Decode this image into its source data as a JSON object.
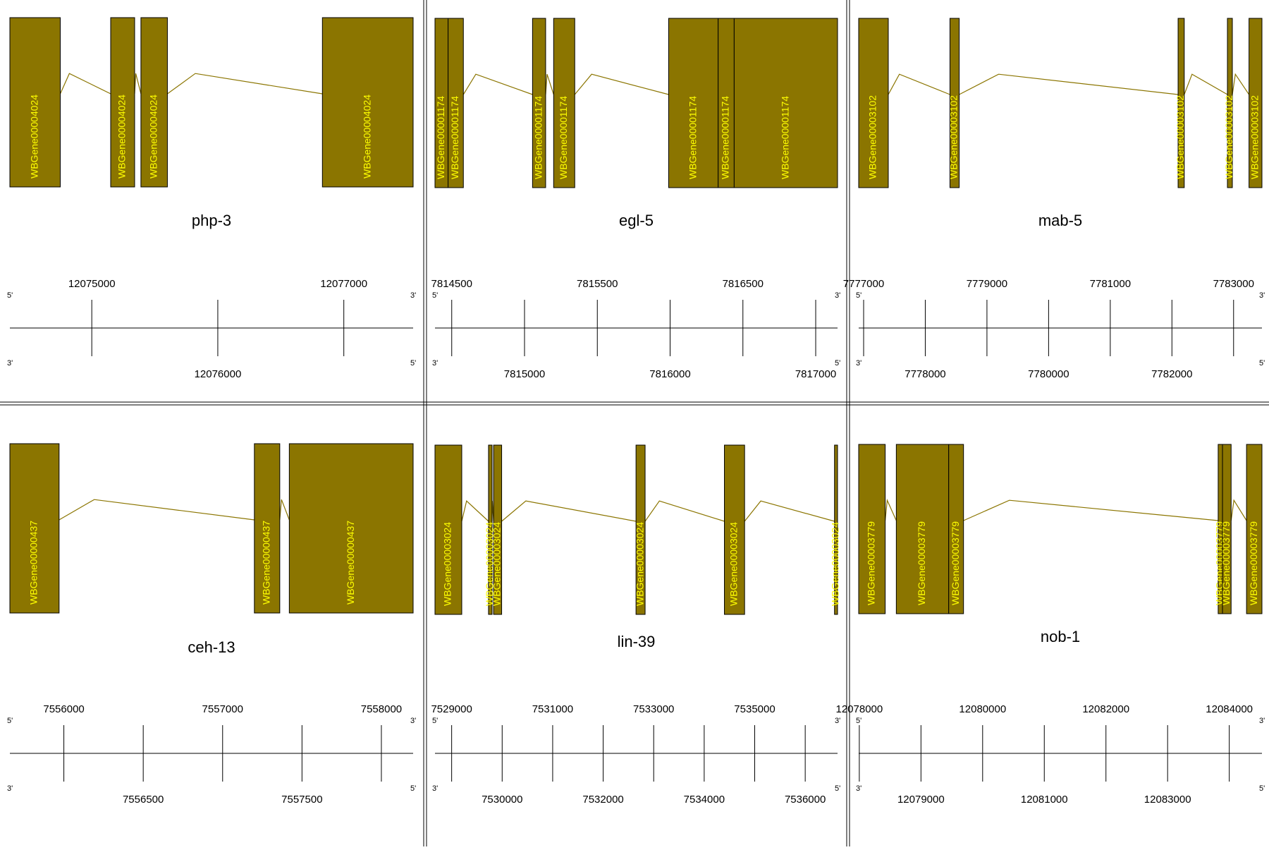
{
  "colors": {
    "exon": "#8b7500",
    "exon_label": "#ffff00",
    "intron": "#8b7500",
    "axis": "#000000",
    "divider": "#000000"
  },
  "strand_labels": {
    "top_left": "5'",
    "top_right": "3'",
    "bottom_left": "3'",
    "bottom_right": "5'"
  },
  "panels": [
    {
      "gene": "php-3",
      "gene_id": "WBGene00004024",
      "range": [
        12074350,
        12077550
      ],
      "exons": [
        [
          12074350,
          12074750
        ],
        [
          12075150,
          12075340
        ],
        [
          12075390,
          12075600
        ],
        [
          12076830,
          12077550
        ]
      ],
      "ticks_top": [
        12075000,
        12077000
      ],
      "ticks_bottom": [
        12076000
      ]
    },
    {
      "gene": "egl-5",
      "gene_id": "WBGene00001174",
      "range": [
        7814385,
        7817150
      ],
      "exons": [
        [
          7814385,
          7814475
        ],
        [
          7814475,
          7814580
        ],
        [
          7815055,
          7815145
        ],
        [
          7815200,
          7815345
        ],
        [
          7815990,
          7816330
        ],
        [
          7816330,
          7816440
        ],
        [
          7816440,
          7817150
        ]
      ],
      "ticks_top": [
        7814500,
        7815500,
        7816500
      ],
      "ticks_bottom": [
        7815000,
        7816000,
        7817000
      ]
    },
    {
      "gene": "mab-5",
      "gene_id": "WBGene00003102",
      "range": [
        7776920,
        7783460
      ],
      "exons": [
        [
          7776920,
          7777400
        ],
        [
          7778400,
          7778550
        ],
        [
          7782100,
          7782200
        ],
        [
          7782900,
          7782980
        ],
        [
          7783250,
          7783460
        ]
      ],
      "ticks_top": [
        7777000,
        7779000,
        7781000,
        7783000
      ],
      "ticks_bottom": [
        7778000,
        7780000,
        7782000
      ]
    },
    {
      "gene": "ceh-13",
      "gene_id": "WBGene00000437",
      "range": [
        7555660,
        7558200
      ],
      "exons": [
        [
          7555660,
          7555970
        ],
        [
          7557200,
          7557360
        ],
        [
          7557420,
          7558200
        ]
      ],
      "ticks_top": [
        7556000,
        7557000,
        7558000
      ],
      "ticks_bottom": [
        7556500,
        7557500
      ]
    },
    {
      "gene": "lin-39",
      "gene_id": "WBGene00003024",
      "range": [
        7528670,
        7536640
      ],
      "exons": [
        [
          7528670,
          7529200
        ],
        [
          7529730,
          7529800
        ],
        [
          7529830,
          7529990
        ],
        [
          7532650,
          7532830
        ],
        [
          7534400,
          7534800
        ],
        [
          7536580,
          7536640
        ]
      ],
      "ticks_top": [
        7529000,
        7531000,
        7533000,
        7535000
      ],
      "ticks_bottom": [
        7530000,
        7532000,
        7534000,
        7536000
      ]
    },
    {
      "gene": "nob-1",
      "gene_id": "WBGene00003779",
      "range": [
        12077990,
        12084530
      ],
      "exons": [
        [
          12077990,
          12078420
        ],
        [
          12078600,
          12079450
        ],
        [
          12079450,
          12079690
        ],
        [
          12083820,
          12083890
        ],
        [
          12083890,
          12084030
        ],
        [
          12084280,
          12084530
        ]
      ],
      "ticks_top": [
        12078000,
        12080000,
        12082000,
        12084000
      ],
      "ticks_bottom": [
        12079000,
        12081000,
        12083000
      ]
    }
  ]
}
